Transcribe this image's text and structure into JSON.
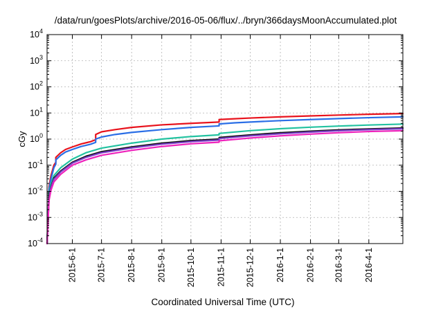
{
  "chart_data": {
    "type": "line",
    "title": "/data/run/goesPlots/archive/2016-05-06/flux/../bryn/366daysMoonAccumulated.plot",
    "xlabel": "Coordinated Universal Time (UTC)",
    "ylabel": "cGy",
    "yscale": "log",
    "ylim": [
      0.0001,
      10000
    ],
    "xlim": [
      "2015-05-06",
      "2016-05-06"
    ],
    "grid": true,
    "y_ticks": [
      {
        "value": 0.0001,
        "base": "10",
        "exp": "-4"
      },
      {
        "value": 0.001,
        "base": "10",
        "exp": "-3"
      },
      {
        "value": 0.01,
        "base": "10",
        "exp": "-2"
      },
      {
        "value": 0.1,
        "base": "10",
        "exp": "-1"
      },
      {
        "value": 1,
        "base": "10",
        "exp": "0"
      },
      {
        "value": 10,
        "base": "10",
        "exp": "1"
      },
      {
        "value": 100,
        "base": "10",
        "exp": "2"
      },
      {
        "value": 1000,
        "base": "10",
        "exp": "3"
      },
      {
        "value": 10000,
        "base": "10",
        "exp": "4"
      }
    ],
    "x_ticks": [
      "2015-6-1",
      "2015-7-1",
      "2015-8-1",
      "2015-9-1",
      "2015-10-1",
      "2015-11-1",
      "2015-12-1",
      "2016-1-1",
      "2016-2-1",
      "2016-3-1",
      "2016-4-1"
    ],
    "series": [
      {
        "color": "#e8121c",
        "x": [
          "2015-05-06",
          "2015-05-08",
          "2015-05-10",
          "2015-05-13",
          "2015-05-15",
          "2015-05-15",
          "2015-05-20",
          "2015-05-25",
          "2015-06-01",
          "2015-06-10",
          "2015-06-20",
          "2015-06-25",
          "2015-06-25",
          "2015-07-01",
          "2015-07-15",
          "2015-08-01",
          "2015-09-01",
          "2015-10-01",
          "2015-10-30",
          "2015-10-30",
          "2015-11-15",
          "2015-12-01",
          "2016-01-01",
          "2016-02-01",
          "2016-03-01",
          "2016-04-01",
          "2016-05-06"
        ],
        "values": [
          0.0001,
          0.015,
          0.04,
          0.1,
          0.13,
          0.2,
          0.3,
          0.4,
          0.5,
          0.65,
          0.8,
          0.95,
          1.5,
          1.9,
          2.3,
          2.8,
          3.5,
          4.0,
          4.5,
          5.6,
          6.0,
          6.4,
          7.1,
          7.7,
          8.3,
          8.9,
          9.5
        ]
      },
      {
        "color": "#2a6ee6",
        "x": [
          "2015-05-06",
          "2015-05-08",
          "2015-05-10",
          "2015-05-13",
          "2015-05-15",
          "2015-05-15",
          "2015-05-20",
          "2015-05-25",
          "2015-06-01",
          "2015-06-10",
          "2015-06-20",
          "2015-06-25",
          "2015-06-25",
          "2015-07-01",
          "2015-07-15",
          "2015-08-01",
          "2015-09-01",
          "2015-10-01",
          "2015-10-30",
          "2015-10-30",
          "2015-11-15",
          "2015-12-01",
          "2016-01-01",
          "2016-02-01",
          "2016-03-01",
          "2016-04-01",
          "2016-05-06"
        ],
        "values": [
          0.0001,
          0.012,
          0.03,
          0.08,
          0.11,
          0.16,
          0.24,
          0.32,
          0.4,
          0.52,
          0.64,
          0.75,
          1.0,
          1.2,
          1.5,
          1.8,
          2.3,
          2.8,
          3.2,
          3.8,
          4.2,
          4.5,
          5.1,
          5.6,
          6.1,
          6.6,
          7.1
        ]
      },
      {
        "color": "#22c2a0",
        "x": [
          "2015-05-06",
          "2015-05-08",
          "2015-05-10",
          "2015-05-13",
          "2015-05-20",
          "2015-06-01",
          "2015-06-15",
          "2015-07-01",
          "2015-08-01",
          "2015-09-01",
          "2015-10-01",
          "2015-10-30",
          "2015-10-30",
          "2015-12-01",
          "2016-01-01",
          "2016-02-01",
          "2016-03-01",
          "2016-04-01",
          "2016-05-06"
        ],
        "values": [
          0.0001,
          0.008,
          0.02,
          0.04,
          0.08,
          0.17,
          0.3,
          0.45,
          0.7,
          1.0,
          1.25,
          1.45,
          1.65,
          2.1,
          2.5,
          2.85,
          3.15,
          3.45,
          3.75
        ]
      },
      {
        "color": "#111111",
        "x": [
          "2015-05-06",
          "2015-05-08",
          "2015-05-10",
          "2015-05-13",
          "2015-05-20",
          "2015-06-01",
          "2015-06-15",
          "2015-07-01",
          "2015-08-01",
          "2015-09-01",
          "2015-10-01",
          "2015-10-30",
          "2015-10-30",
          "2015-12-01",
          "2016-01-01",
          "2016-02-01",
          "2016-03-01",
          "2016-04-01",
          "2016-05-06"
        ],
        "values": [
          0.0001,
          0.006,
          0.015,
          0.032,
          0.06,
          0.13,
          0.22,
          0.33,
          0.5,
          0.7,
          0.87,
          1.0,
          1.15,
          1.45,
          1.75,
          2.0,
          2.25,
          2.45,
          2.65
        ]
      },
      {
        "color": "#7a3ec8",
        "x": [
          "2015-05-06",
          "2015-05-08",
          "2015-05-10",
          "2015-05-13",
          "2015-05-20",
          "2015-06-01",
          "2015-06-15",
          "2015-07-01",
          "2015-08-01",
          "2015-09-01",
          "2015-10-01",
          "2015-10-30",
          "2015-10-30",
          "2015-12-01",
          "2016-01-01",
          "2016-02-01",
          "2016-03-01",
          "2016-04-01",
          "2016-05-06"
        ],
        "values": [
          0.0001,
          0.0055,
          0.014,
          0.029,
          0.055,
          0.12,
          0.2,
          0.3,
          0.46,
          0.64,
          0.8,
          0.92,
          1.05,
          1.33,
          1.6,
          1.85,
          2.1,
          2.3,
          2.5
        ]
      },
      {
        "color": "#ee22bb",
        "x": [
          "2015-05-06",
          "2015-05-08",
          "2015-05-10",
          "2015-05-13",
          "2015-05-20",
          "2015-06-01",
          "2015-06-15",
          "2015-07-01",
          "2015-08-01",
          "2015-09-01",
          "2015-10-01",
          "2015-10-30",
          "2015-10-30",
          "2015-12-01",
          "2016-01-01",
          "2016-02-01",
          "2016-03-01",
          "2016-04-01",
          "2016-05-06"
        ],
        "values": [
          0.0001,
          0.0045,
          0.011,
          0.023,
          0.045,
          0.1,
          0.16,
          0.24,
          0.37,
          0.52,
          0.66,
          0.76,
          0.86,
          1.1,
          1.33,
          1.55,
          1.75,
          1.95,
          2.1
        ]
      }
    ]
  }
}
